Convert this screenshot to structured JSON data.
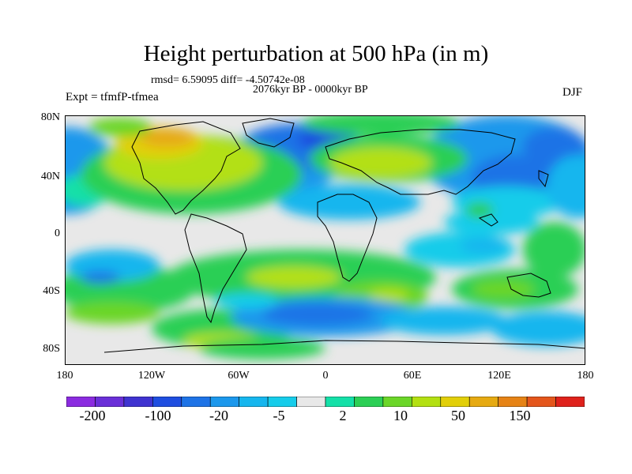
{
  "title": "Height perturbation at 500 hPa (in m)",
  "stats": "rmsd= 6.59095 diff= -4.50742e-08",
  "period": "2076kyr BP - 0000kyr BP",
  "experiment": "Expt = tfmfP-tfmea",
  "season": "DJF",
  "map": {
    "projection": "cylindrical equidistant",
    "lat_labels": [
      "80N",
      "40N",
      "0",
      "40S",
      "80S"
    ],
    "lon_labels": [
      "180",
      "120W",
      "60W",
      "0",
      "60E",
      "120E",
      "180"
    ],
    "land_color": "#e8e8e8"
  },
  "colorbar": {
    "labels": [
      "-200",
      "-100",
      "-20",
      "-5",
      "2",
      "10",
      "50",
      "150"
    ],
    "colors": [
      "#8b2be0",
      "#6a2fd8",
      "#3f33d0",
      "#1f4ee0",
      "#1e73e6",
      "#1c98ec",
      "#16b6ee",
      "#16ccea",
      "#e8e8e8",
      "#14e0a8",
      "#2ccf55",
      "#6bd628",
      "#b3e012",
      "#e2cf08",
      "#e6aa12",
      "#e68316",
      "#e4561c",
      "#df221c"
    ]
  }
}
